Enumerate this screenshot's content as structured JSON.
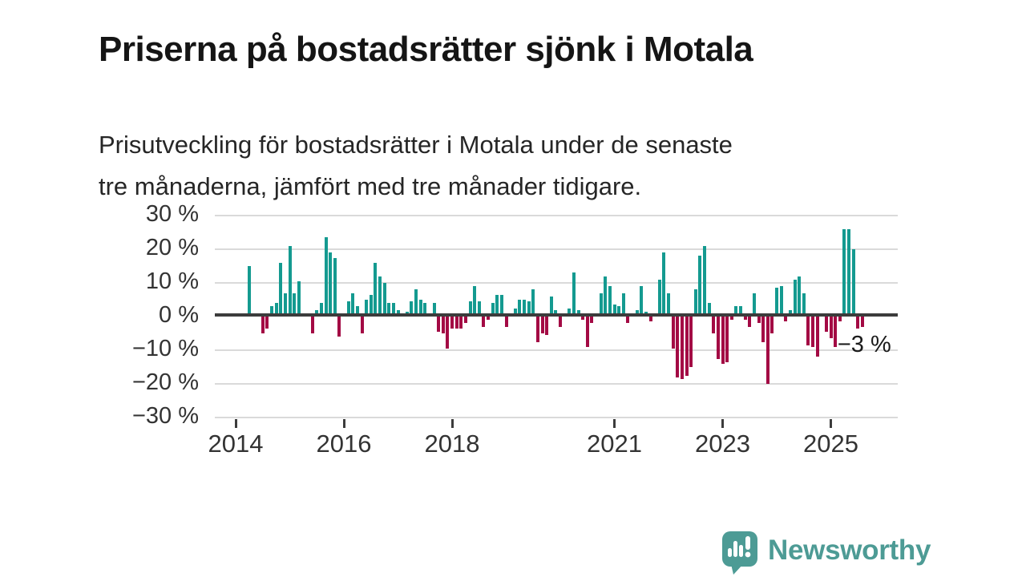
{
  "header": {
    "title": "Priserna på bostadsrätter sjönk i Motala",
    "subtitle_lines": [
      "Prisutveckling för bostadsrätter i Motala under de senaste",
      "tre månaderna, jämfört med tre månader tidigare."
    ]
  },
  "footer": {
    "brand": "Newsworthy",
    "brand_color": "#4d9b95",
    "logo_icon": "speech-bubble-bar-chart-exclamation-icon"
  },
  "chart_data": {
    "type": "bar",
    "title": "Prisutveckling för bostadsrätter i Motala, 3 månader jämfört med 3 månader tidigare",
    "unit": "%",
    "ylim": [
      -30,
      30
    ],
    "grid": "horizontal",
    "colors": {
      "positive": "#149a90",
      "negative": "#a30a44",
      "gridline": "#dadada",
      "zeroline": "#3c3c3c"
    },
    "yticks": [
      {
        "value": 30,
        "label": "30 %"
      },
      {
        "value": 20,
        "label": "20 %"
      },
      {
        "value": 10,
        "label": "10 %"
      },
      {
        "value": 0,
        "label": "0 %"
      },
      {
        "value": -10,
        "label": "−10 %"
      },
      {
        "value": -20,
        "label": "−20 %"
      },
      {
        "value": -30,
        "label": "−30 %"
      }
    ],
    "xticks": [
      {
        "label": "2014",
        "month": "2014-01"
      },
      {
        "label": "2016",
        "month": "2016-01"
      },
      {
        "label": "2018",
        "month": "2018-01"
      },
      {
        "label": "2021",
        "month": "2021-01"
      },
      {
        "label": "2023",
        "month": "2023-01"
      },
      {
        "label": "2025",
        "month": "2025-01"
      }
    ],
    "series": [
      [
        "2014-04",
        15
      ],
      [
        "2014-07",
        -5
      ],
      [
        "2014-08",
        -3.5
      ],
      [
        "2014-09",
        3
      ],
      [
        "2014-10",
        4
      ],
      [
        "2014-11",
        16
      ],
      [
        "2014-12",
        7
      ],
      [
        "2015-01",
        21
      ],
      [
        "2015-02",
        7
      ],
      [
        "2015-03",
        10.5
      ],
      [
        "2015-06",
        -5
      ],
      [
        "2015-07",
        2
      ],
      [
        "2015-08",
        4
      ],
      [
        "2015-09",
        23.5
      ],
      [
        "2015-10",
        19
      ],
      [
        "2015-11",
        17.5
      ],
      [
        "2015-12",
        -6
      ],
      [
        "2016-02",
        4.5
      ],
      [
        "2016-03",
        7
      ],
      [
        "2016-04",
        3
      ],
      [
        "2016-05",
        -5
      ],
      [
        "2016-06",
        5
      ],
      [
        "2016-07",
        6.5
      ],
      [
        "2016-08",
        16
      ],
      [
        "2016-09",
        12
      ],
      [
        "2016-10",
        10
      ],
      [
        "2016-11",
        4
      ],
      [
        "2016-12",
        4
      ],
      [
        "2017-01",
        2
      ],
      [
        "2017-03",
        1.5
      ],
      [
        "2017-04",
        4.5
      ],
      [
        "2017-05",
        8
      ],
      [
        "2017-06",
        5
      ],
      [
        "2017-07",
        4
      ],
      [
        "2017-09",
        4
      ],
      [
        "2017-10",
        -4.5
      ],
      [
        "2017-11",
        -5
      ],
      [
        "2017-12",
        -9.5
      ],
      [
        "2018-01",
        -3.5
      ],
      [
        "2018-02",
        -3.5
      ],
      [
        "2018-03",
        -3.5
      ],
      [
        "2018-04",
        -2
      ],
      [
        "2018-05",
        4.5
      ],
      [
        "2018-06",
        9
      ],
      [
        "2018-07",
        4.5
      ],
      [
        "2018-08",
        -3
      ],
      [
        "2018-09",
        -1
      ],
      [
        "2018-10",
        4
      ],
      [
        "2018-11",
        6.5
      ],
      [
        "2018-12",
        6.5
      ],
      [
        "2019-01",
        -3
      ],
      [
        "2019-03",
        2.5
      ],
      [
        "2019-04",
        5
      ],
      [
        "2019-05",
        5
      ],
      [
        "2019-06",
        4.5
      ],
      [
        "2019-07",
        8
      ],
      [
        "2019-08",
        -7.5
      ],
      [
        "2019-09",
        -5
      ],
      [
        "2019-10",
        -5.5
      ],
      [
        "2019-11",
        6
      ],
      [
        "2019-12",
        2
      ],
      [
        "2020-01",
        -3
      ],
      [
        "2020-03",
        2.5
      ],
      [
        "2020-04",
        13
      ],
      [
        "2020-05",
        2
      ],
      [
        "2020-06",
        -1
      ],
      [
        "2020-07",
        -9
      ],
      [
        "2020-08",
        -2
      ],
      [
        "2020-09",
        1
      ],
      [
        "2020-10",
        7
      ],
      [
        "2020-11",
        12
      ],
      [
        "2020-12",
        9
      ],
      [
        "2021-01",
        3.5
      ],
      [
        "2021-02",
        3
      ],
      [
        "2021-03",
        7
      ],
      [
        "2021-04",
        -2
      ],
      [
        "2021-06",
        2
      ],
      [
        "2021-07",
        9
      ],
      [
        "2021-08",
        1.5
      ],
      [
        "2021-09",
        -1.5
      ],
      [
        "2021-10",
        1
      ],
      [
        "2021-11",
        11
      ],
      [
        "2021-12",
        19
      ],
      [
        "2022-01",
        7
      ],
      [
        "2022-02",
        -9.5
      ],
      [
        "2022-03",
        -18
      ],
      [
        "2022-04",
        -18.5
      ],
      [
        "2022-05",
        -17.5
      ],
      [
        "2022-06",
        -15
      ],
      [
        "2022-07",
        8
      ],
      [
        "2022-08",
        18
      ],
      [
        "2022-09",
        21
      ],
      [
        "2022-10",
        4
      ],
      [
        "2022-11",
        -5
      ],
      [
        "2022-12",
        -12.5
      ],
      [
        "2023-01",
        -14
      ],
      [
        "2023-02",
        -13.5
      ],
      [
        "2023-03",
        -1
      ],
      [
        "2023-04",
        3
      ],
      [
        "2023-05",
        3
      ],
      [
        "2023-06",
        -1
      ],
      [
        "2023-07",
        -3
      ],
      [
        "2023-08",
        7
      ],
      [
        "2023-09",
        -2
      ],
      [
        "2023-10",
        -7.5
      ],
      [
        "2023-11",
        -20
      ],
      [
        "2023-12",
        -5
      ],
      [
        "2024-01",
        8.5
      ],
      [
        "2024-02",
        9
      ],
      [
        "2024-03",
        -1.5
      ],
      [
        "2024-04",
        2
      ],
      [
        "2024-05",
        11
      ],
      [
        "2024-06",
        12
      ],
      [
        "2024-07",
        7
      ],
      [
        "2024-08",
        -8.5
      ],
      [
        "2024-09",
        -9
      ],
      [
        "2024-10",
        -12
      ],
      [
        "2024-11",
        1
      ],
      [
        "2024-12",
        -4.5
      ],
      [
        "2025-01",
        -6.5
      ],
      [
        "2025-02",
        -9
      ],
      [
        "2025-03",
        -1.5
      ],
      [
        "2025-04",
        26
      ],
      [
        "2025-05",
        26
      ],
      [
        "2025-06",
        20
      ],
      [
        "2025-07",
        -3.5
      ],
      [
        "2025-08",
        -3
      ]
    ],
    "annotation": {
      "text": "−3 %",
      "month": "2025-08",
      "value": -3
    }
  }
}
